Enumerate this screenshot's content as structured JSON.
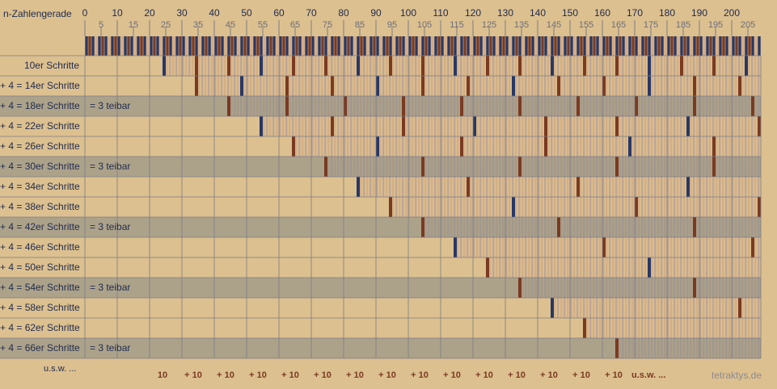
{
  "header": {
    "title": "n-Zahlengerade"
  },
  "axis": {
    "major_ticks": [
      0,
      10,
      20,
      30,
      40,
      50,
      60,
      70,
      80,
      90,
      100,
      110,
      120,
      130,
      140,
      150,
      160,
      170,
      180,
      190,
      200
    ],
    "minor_ticks": [
      5,
      15,
      25,
      35,
      45,
      55,
      65,
      75,
      85,
      95,
      105,
      115,
      125,
      135,
      145,
      155,
      165,
      175,
      185,
      195,
      205
    ],
    "max": 209
  },
  "rows": [
    {
      "label": "10er Schritte",
      "step": 10,
      "start": 24,
      "note": ""
    },
    {
      "label": "+ 4 = 14er Schritte",
      "step": 14,
      "start": 34,
      "note": ""
    },
    {
      "label": "+ 4 = 18er Schritte",
      "step": 18,
      "start": 44,
      "note": "= 3 teibar"
    },
    {
      "label": "+ 4 = 22er Schritte",
      "step": 22,
      "start": 54,
      "note": ""
    },
    {
      "label": "+ 4 = 26er Schritte",
      "step": 26,
      "start": 64,
      "note": ""
    },
    {
      "label": "+ 4 = 30er Schritte",
      "step": 30,
      "start": 74,
      "note": "= 3 teibar"
    },
    {
      "label": "+ 4 = 34er Schritte",
      "step": 34,
      "start": 84,
      "note": ""
    },
    {
      "label": "+ 4 = 38er Schritte",
      "step": 38,
      "start": 94,
      "note": ""
    },
    {
      "label": "+ 4 = 42er Schritte",
      "step": 42,
      "start": 104,
      "note": "= 3 teibar"
    },
    {
      "label": "+ 4 = 46er Schritte",
      "step": 46,
      "start": 114,
      "note": ""
    },
    {
      "label": "+ 4 = 50er Schritte",
      "step": 50,
      "start": 124,
      "note": ""
    },
    {
      "label": "+ 4 = 54er Schritte",
      "step": 54,
      "start": 134,
      "note": "= 3 teibar"
    },
    {
      "label": "+ 4 = 58er Schritte",
      "step": 58,
      "start": 144,
      "note": ""
    },
    {
      "label": "+ 4 = 62er Schritte",
      "step": 62,
      "start": 154,
      "note": ""
    },
    {
      "label": "+ 4 = 66er Schritte",
      "step": 66,
      "start": 164,
      "note": "= 3 teibar"
    }
  ],
  "footer": {
    "etc_left": "u.s.w. ...",
    "step_labels": [
      "10",
      "+ 10",
      "+ 10",
      "+ 10",
      "+ 10",
      "+ 10",
      "+ 10",
      "+ 10",
      "+ 10",
      "+ 10",
      "+ 10",
      "+ 10",
      "+ 10",
      "+ 10",
      "+ 10"
    ],
    "etc_right": "u.s.w. ...",
    "credit": "tetraktys.de"
  },
  "colors": {
    "background": "#dcc08f",
    "grey_row": "#aca28a",
    "grid": "#7d7c84",
    "navy": "#273867",
    "brown": "#7a3a22",
    "stripe_light": "#e6c98f",
    "stripe_mid": "#d4aa83",
    "stripe_dark": "#b8a19a"
  }
}
